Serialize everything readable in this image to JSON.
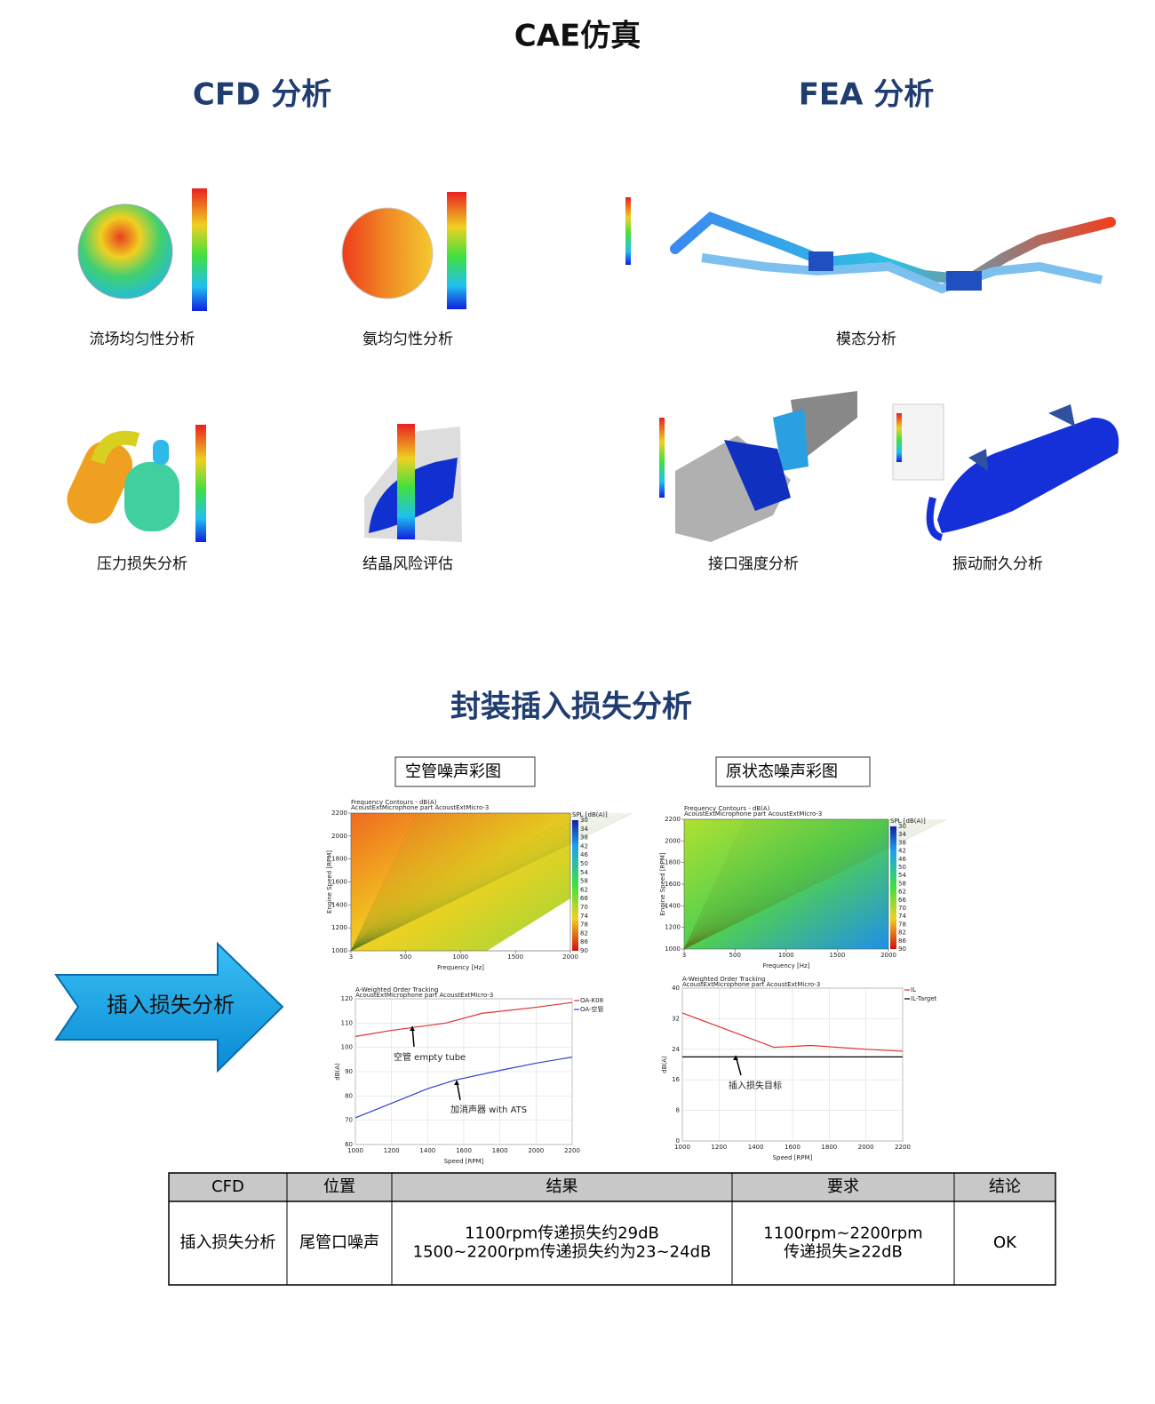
{
  "header": {
    "title": "CAE仿真"
  },
  "sections": {
    "cfd": "CFD 分析",
    "fea": "FEA 分析",
    "il": "封装插入损失分析"
  },
  "figures": [
    {
      "caption": "流场均匀性分析"
    },
    {
      "caption": "氨均匀性分析"
    },
    {
      "caption": "模态分析"
    },
    {
      "caption": "压力损失分析"
    },
    {
      "caption": "结晶风险评估"
    },
    {
      "caption": "接口强度分析"
    },
    {
      "caption": "振动耐久分析"
    }
  ],
  "boxes": [
    "空管噪声彩图",
    "原状态噪声彩图"
  ],
  "arrow_label": "插入损失分析",
  "chart_data": [
    {
      "type": "contour",
      "title": "Frequency Contours - dB(A)",
      "subtitle": "AcoustExtMicrophone part AcoustExtMicro-3",
      "xlabel": "Frequency [Hz]",
      "ylabel": "Engine Speed [RPM]",
      "xlim": [
        3,
        2000
      ],
      "xticks": [
        3,
        500,
        1000,
        1500,
        2000
      ],
      "ylim": [
        1000,
        2200
      ],
      "yticks": [
        1000,
        1200,
        1400,
        1600,
        1800,
        2000,
        2200
      ],
      "colorbar_label": "SPL [dB(A)]",
      "colorbar_ticks": [
        30,
        34,
        38,
        42,
        46,
        50,
        54,
        58,
        62,
        66,
        70,
        74,
        78,
        82,
        86,
        90
      ],
      "fill_colors": [
        "#f06a20",
        "#f2d020",
        "#9ad838"
      ],
      "empty_corner": true
    },
    {
      "type": "contour",
      "title": "Frequency Contours - dB(A)",
      "subtitle": "AcoustExtMicrophone part AcoustExtMicro-3",
      "xlabel": "Frequency [Hz]",
      "ylabel": "Engine Speed [RPM]",
      "xlim": [
        3,
        2000
      ],
      "xticks": [
        3,
        500,
        1000,
        1500,
        2000
      ],
      "ylim": [
        1000,
        2200
      ],
      "yticks": [
        1000,
        1200,
        1400,
        1600,
        1800,
        2000,
        2200
      ],
      "colorbar_label": "SPL [dB(A)]",
      "colorbar_ticks": [
        30,
        34,
        38,
        42,
        46,
        50,
        54,
        58,
        62,
        66,
        70,
        74,
        78,
        82,
        86,
        90
      ],
      "fill_colors": [
        "#b0e030",
        "#50d050",
        "#2090e8"
      ],
      "empty_corner": false
    },
    {
      "type": "line",
      "title": "A-Weighted Order Tracking",
      "subtitle": "AcoustExtMicrophone part AcoustExtMicro-3",
      "xlabel": "Speed [RPM]",
      "ylabel": "dB(A)",
      "xlim": [
        1000,
        2200
      ],
      "xticks": [
        1000,
        1200,
        1400,
        1600,
        1800,
        2000,
        2200
      ],
      "ylim": [
        60,
        120
      ],
      "yticks": [
        60,
        70,
        80,
        90,
        100,
        110,
        120
      ],
      "series": [
        {
          "name": "OA-K08",
          "color": "#e03030",
          "x": [
            1000,
            1200,
            1400,
            1500,
            1700,
            2000,
            2200
          ],
          "values": [
            104.5,
            107,
            109,
            110,
            114,
            116.5,
            118.5
          ]
        },
        {
          "name": "OA-空管",
          "color": "#3040d0",
          "x": [
            1000,
            1200,
            1400,
            1550,
            1800,
            2000,
            2200
          ],
          "values": [
            71,
            77,
            83,
            86.5,
            90.5,
            93.5,
            96
          ]
        }
      ],
      "annotations": [
        {
          "text": "空管 empty tube"
        },
        {
          "text": "加消声器 with ATS"
        }
      ]
    },
    {
      "type": "line",
      "title": "A-Weighted Order Tracking",
      "subtitle": "AcoustExtMicrophone part AcoustExtMicro-3",
      "xlabel": "Speed [RPM]",
      "ylabel": "dB(A)",
      "xlim": [
        1000,
        2200
      ],
      "xticks": [
        1000,
        1200,
        1400,
        1600,
        1800,
        2000,
        2200
      ],
      "ylim": [
        0,
        40
      ],
      "yticks": [
        0,
        8,
        16,
        24,
        32,
        40
      ],
      "series": [
        {
          "name": "IL",
          "color": "#e03030",
          "x": [
            1000,
            1500,
            1700,
            2000,
            2200
          ],
          "values": [
            33.5,
            24.5,
            25,
            24,
            23.5
          ]
        },
        {
          "name": "IL-Target",
          "color": "#000000",
          "x": [
            1000,
            2200
          ],
          "values": [
            22,
            22
          ]
        }
      ],
      "annotations": [
        {
          "text": "插入损失目标"
        }
      ]
    }
  ],
  "table": {
    "header": [
      "CFD",
      "位置",
      "结果",
      "要求",
      "结论"
    ],
    "rows": [
      [
        "插入损失分析",
        "尾管口噪声",
        [
          "1100rpm传递损失约29dB",
          "1500~2200rpm传递损失约为23~24dB"
        ],
        [
          "1100rpm~2200rpm",
          "传递损失≥22dB"
        ],
        "OK"
      ]
    ]
  }
}
